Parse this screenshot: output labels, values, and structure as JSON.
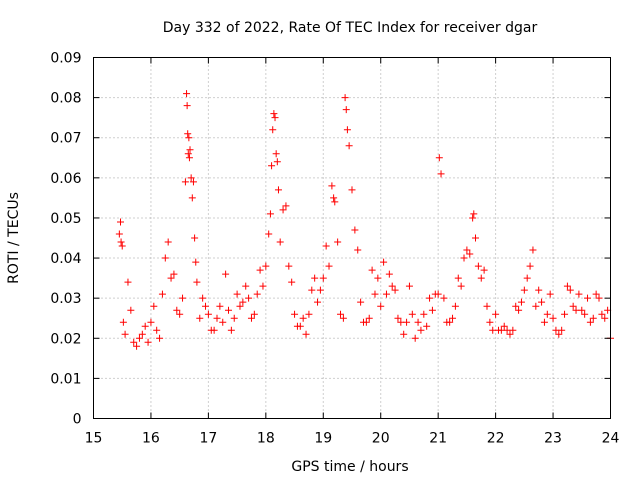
{
  "chart_data": {
    "type": "scatter",
    "title": "Day 332 of 2022, Rate Of TEC Index for receiver dgar",
    "xlabel": "GPS time / hours",
    "ylabel": "ROTI / TECUs",
    "xlim": [
      15,
      24
    ],
    "ylim": [
      0,
      0.09
    ],
    "x_ticks": [
      15,
      16,
      17,
      18,
      19,
      20,
      21,
      22,
      23,
      24
    ],
    "x_tick_labels": [
      "15",
      "16",
      "17",
      "18",
      "19",
      "20",
      "21",
      "22",
      "23",
      "24"
    ],
    "y_ticks": [
      0,
      0.01,
      0.02,
      0.03,
      0.04,
      0.05,
      0.06,
      0.07,
      0.08,
      0.09
    ],
    "y_tick_labels": [
      "0",
      "0.01",
      "0.02",
      "0.03",
      "0.04",
      "0.05",
      "0.06",
      "0.07",
      "0.08",
      "0.09"
    ],
    "grid": true,
    "marker": "+",
    "color": "#ff0000",
    "series": [
      {
        "x": [
          15.45,
          15.47,
          15.48,
          15.5,
          15.52,
          15.55,
          15.6,
          15.65,
          15.7,
          15.75,
          15.8,
          15.85,
          15.9,
          15.95,
          16.0,
          16.05,
          16.1,
          16.15,
          16.2,
          16.25,
          16.3,
          16.35,
          16.4,
          16.45,
          16.5,
          16.55,
          16.6,
          16.62,
          16.63,
          16.64,
          16.65,
          16.66,
          16.67,
          16.68,
          16.7,
          16.72,
          16.74,
          16.76,
          16.78,
          16.8,
          16.85,
          16.9,
          16.95,
          17.0,
          17.05,
          17.1,
          17.15,
          17.2,
          17.25,
          17.3,
          17.35,
          17.4,
          17.45,
          17.5,
          17.55,
          17.6,
          17.65,
          17.7,
          17.75,
          17.8,
          17.85,
          17.9,
          17.95,
          18.0,
          18.05,
          18.08,
          18.1,
          18.12,
          18.14,
          18.16,
          18.18,
          18.2,
          18.22,
          18.25,
          18.3,
          18.35,
          18.4,
          18.45,
          18.5,
          18.55,
          18.6,
          18.65,
          18.7,
          18.75,
          18.8,
          18.85,
          18.9,
          18.95,
          19.0,
          19.05,
          19.1,
          19.15,
          19.18,
          19.2,
          19.25,
          19.3,
          19.35,
          19.38,
          19.4,
          19.42,
          19.45,
          19.5,
          19.55,
          19.6,
          19.65,
          19.7,
          19.75,
          19.8,
          19.85,
          19.9,
          19.95,
          20.0,
          20.05,
          20.1,
          20.15,
          20.2,
          20.25,
          20.3,
          20.35,
          20.4,
          20.45,
          20.5,
          20.55,
          20.6,
          20.65,
          20.7,
          20.75,
          20.8,
          20.85,
          20.9,
          20.95,
          21.0,
          21.02,
          21.05,
          21.1,
          21.15,
          21.2,
          21.25,
          21.3,
          21.35,
          21.4,
          21.45,
          21.5,
          21.55,
          21.6,
          21.62,
          21.65,
          21.7,
          21.75,
          21.8,
          21.85,
          21.9,
          21.95,
          22.0,
          22.05,
          22.1,
          22.15,
          22.2,
          22.25,
          22.3,
          22.35,
          22.4,
          22.45,
          22.5,
          22.55,
          22.6,
          22.65,
          22.7,
          22.75,
          22.8,
          22.85,
          22.9,
          22.95,
          23.0,
          23.05,
          23.1,
          23.15,
          23.2,
          23.25,
          23.3,
          23.35,
          23.4,
          23.45,
          23.5,
          23.55,
          23.6,
          23.65,
          23.7,
          23.75,
          23.8,
          23.85,
          23.9,
          23.95,
          24.0
        ],
        "y": [
          0.046,
          0.049,
          0.044,
          0.043,
          0.024,
          0.021,
          0.034,
          0.027,
          0.019,
          0.018,
          0.02,
          0.021,
          0.023,
          0.019,
          0.024,
          0.028,
          0.022,
          0.02,
          0.031,
          0.04,
          0.044,
          0.035,
          0.036,
          0.027,
          0.026,
          0.03,
          0.059,
          0.081,
          0.078,
          0.071,
          0.066,
          0.07,
          0.065,
          0.067,
          0.06,
          0.055,
          0.059,
          0.045,
          0.039,
          0.034,
          0.025,
          0.03,
          0.028,
          0.026,
          0.022,
          0.022,
          0.025,
          0.028,
          0.024,
          0.036,
          0.027,
          0.022,
          0.025,
          0.031,
          0.028,
          0.029,
          0.033,
          0.03,
          0.025,
          0.026,
          0.031,
          0.037,
          0.033,
          0.038,
          0.046,
          0.051,
          0.063,
          0.072,
          0.076,
          0.075,
          0.066,
          0.064,
          0.057,
          0.044,
          0.052,
          0.053,
          0.038,
          0.034,
          0.026,
          0.023,
          0.023,
          0.025,
          0.021,
          0.026,
          0.032,
          0.035,
          0.029,
          0.032,
          0.035,
          0.043,
          0.038,
          0.058,
          0.055,
          0.054,
          0.044,
          0.026,
          0.025,
          0.08,
          0.077,
          0.072,
          0.068,
          0.057,
          0.047,
          0.042,
          0.029,
          0.024,
          0.024,
          0.025,
          0.037,
          0.031,
          0.035,
          0.028,
          0.039,
          0.031,
          0.036,
          0.033,
          0.032,
          0.025,
          0.024,
          0.021,
          0.024,
          0.033,
          0.026,
          0.02,
          0.024,
          0.022,
          0.026,
          0.023,
          0.03,
          0.027,
          0.031,
          0.031,
          0.065,
          0.061,
          0.03,
          0.024,
          0.024,
          0.025,
          0.028,
          0.035,
          0.033,
          0.04,
          0.042,
          0.041,
          0.05,
          0.051,
          0.045,
          0.038,
          0.035,
          0.037,
          0.028,
          0.024,
          0.022,
          0.026,
          0.022,
          0.022,
          0.023,
          0.022,
          0.021,
          0.022,
          0.028,
          0.027,
          0.029,
          0.032,
          0.035,
          0.038,
          0.042,
          0.028,
          0.032,
          0.029,
          0.024,
          0.026,
          0.031,
          0.025,
          0.022,
          0.021,
          0.022,
          0.026,
          0.033,
          0.032,
          0.028,
          0.027,
          0.031,
          0.027,
          0.026,
          0.03,
          0.024,
          0.025,
          0.031,
          0.03,
          0.026,
          0.025,
          0.027,
          0.02
        ]
      }
    ]
  }
}
